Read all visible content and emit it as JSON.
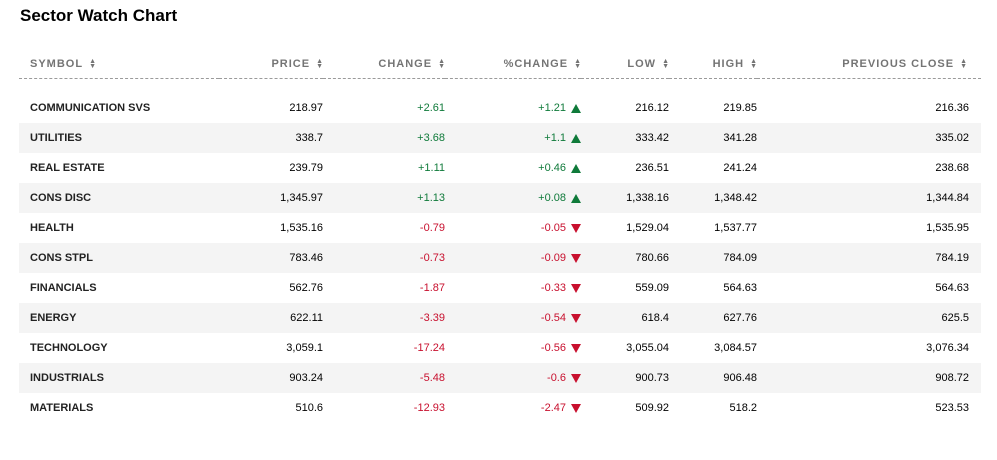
{
  "title": "Sector Watch Chart",
  "columns": [
    {
      "label": "SYMBOL"
    },
    {
      "label": "PRICE"
    },
    {
      "label": "CHANGE"
    },
    {
      "label": "%CHANGE"
    },
    {
      "label": "LOW"
    },
    {
      "label": "HIGH"
    },
    {
      "label": "PREVIOUS CLOSE"
    }
  ],
  "colors": {
    "up": "#0f7a3a",
    "down": "#c8102e",
    "row_alt": "#f4f4f4"
  },
  "rows": [
    {
      "symbol": "COMMUNICATION SVS",
      "price": "218.97",
      "change": "+2.61",
      "pct_change": "+1.21",
      "direction": "up",
      "low": "216.12",
      "high": "219.85",
      "prev_close": "216.36"
    },
    {
      "symbol": "UTILITIES",
      "price": "338.7",
      "change": "+3.68",
      "pct_change": "+1.1",
      "direction": "up",
      "low": "333.42",
      "high": "341.28",
      "prev_close": "335.02"
    },
    {
      "symbol": "REAL ESTATE",
      "price": "239.79",
      "change": "+1.11",
      "pct_change": "+0.46",
      "direction": "up",
      "low": "236.51",
      "high": "241.24",
      "prev_close": "238.68"
    },
    {
      "symbol": "CONS DISC",
      "price": "1,345.97",
      "change": "+1.13",
      "pct_change": "+0.08",
      "direction": "up",
      "low": "1,338.16",
      "high": "1,348.42",
      "prev_close": "1,344.84"
    },
    {
      "symbol": "HEALTH",
      "price": "1,535.16",
      "change": "-0.79",
      "pct_change": "-0.05",
      "direction": "down",
      "low": "1,529.04",
      "high": "1,537.77",
      "prev_close": "1,535.95"
    },
    {
      "symbol": "CONS STPL",
      "price": "783.46",
      "change": "-0.73",
      "pct_change": "-0.09",
      "direction": "down",
      "low": "780.66",
      "high": "784.09",
      "prev_close": "784.19"
    },
    {
      "symbol": "FINANCIALS",
      "price": "562.76",
      "change": "-1.87",
      "pct_change": "-0.33",
      "direction": "down",
      "low": "559.09",
      "high": "564.63",
      "prev_close": "564.63"
    },
    {
      "symbol": "ENERGY",
      "price": "622.11",
      "change": "-3.39",
      "pct_change": "-0.54",
      "direction": "down",
      "low": "618.4",
      "high": "627.76",
      "prev_close": "625.5"
    },
    {
      "symbol": "TECHNOLOGY",
      "price": "3,059.1",
      "change": "-17.24",
      "pct_change": "-0.56",
      "direction": "down",
      "low": "3,055.04",
      "high": "3,084.57",
      "prev_close": "3,076.34"
    },
    {
      "symbol": "INDUSTRIALS",
      "price": "903.24",
      "change": "-5.48",
      "pct_change": "-0.6",
      "direction": "down",
      "low": "900.73",
      "high": "906.48",
      "prev_close": "908.72"
    },
    {
      "symbol": "MATERIALS",
      "price": "510.6",
      "change": "-12.93",
      "pct_change": "-2.47",
      "direction": "down",
      "low": "509.92",
      "high": "518.2",
      "prev_close": "523.53"
    }
  ]
}
